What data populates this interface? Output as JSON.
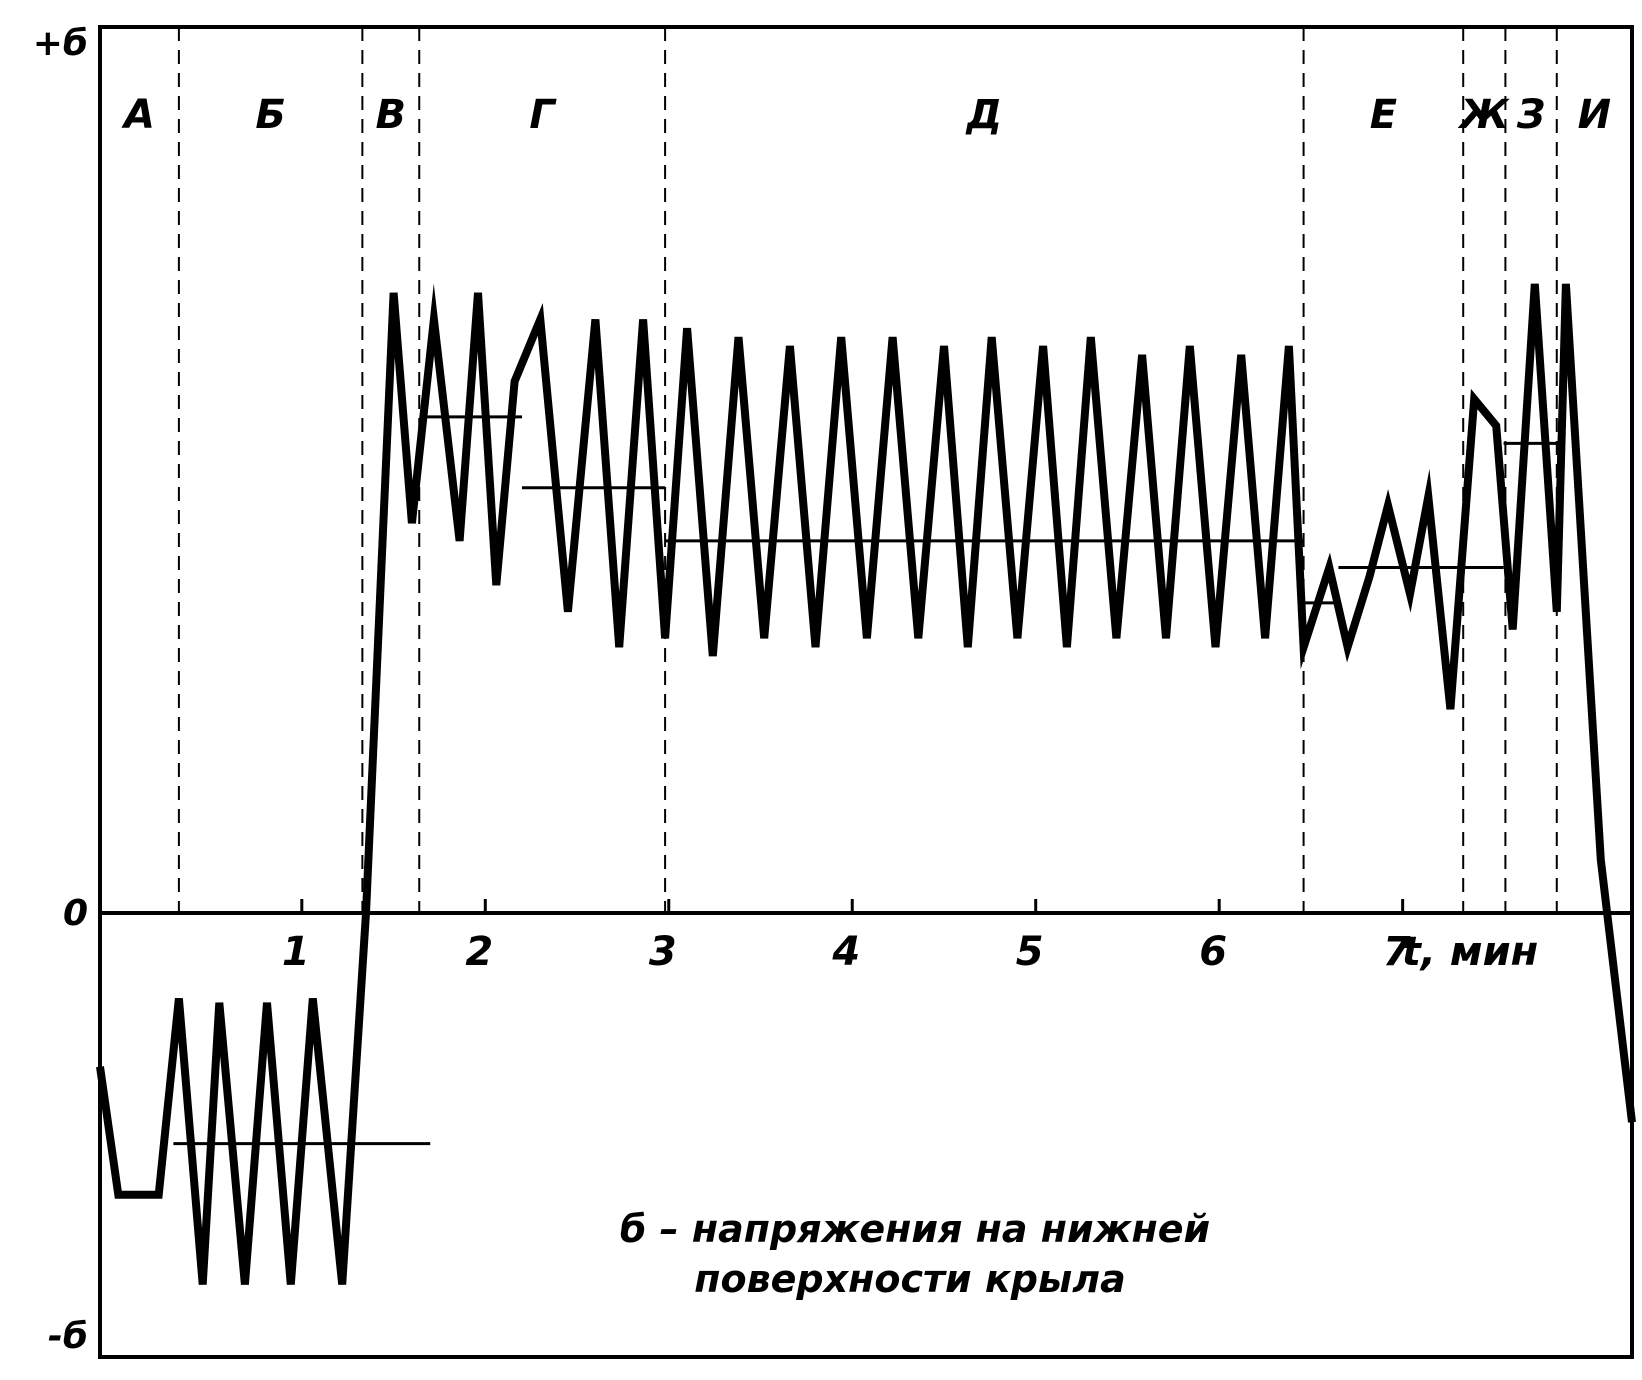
{
  "chart_data": {
    "type": "line",
    "title": "",
    "caption_line1": "б – напряжения на нижней",
    "caption_line2": "поверхности крыла",
    "xlabel": "t, мин",
    "ylabel": "",
    "y_top_label": "+б",
    "y_zero_label": "0",
    "y_bottom_label": "-б",
    "xlim": [
      -0.1,
      8.25
    ],
    "ylim": [
      -1,
      1
    ],
    "x_ticks": [
      1,
      2,
      3,
      4,
      5,
      6,
      7
    ],
    "x_tick_labels": [
      "1",
      "2",
      "3",
      "4",
      "5",
      "6",
      "7"
    ],
    "grid": false,
    "phases": [
      {
        "label": "А",
        "start": -0.1,
        "end": 0.33
      },
      {
        "label": "Б",
        "start": 0.33,
        "end": 1.33
      },
      {
        "label": "В",
        "start": 1.33,
        "end": 1.64
      },
      {
        "label": "Г",
        "start": 1.64,
        "end": 2.98
      },
      {
        "label": "Д",
        "start": 2.98,
        "end": 6.46
      },
      {
        "label": "Е",
        "start": 6.46,
        "end": 7.33
      },
      {
        "label": "Ж",
        "start": 7.33,
        "end": 7.56
      },
      {
        "label": "З",
        "start": 7.56,
        "end": 7.84
      },
      {
        "label": "И",
        "start": 7.84,
        "end": 8.25
      }
    ],
    "series": [
      {
        "kind": "stress",
        "x": [
          -0.1,
          0.0,
          0.22,
          0.33,
          0.46,
          0.55,
          0.69,
          0.81,
          0.94,
          1.06,
          1.22,
          1.35,
          1.5,
          1.6,
          1.72,
          1.86,
          1.96,
          2.06,
          2.16,
          2.3,
          2.45,
          2.6,
          2.73,
          2.86,
          2.98,
          3.1,
          3.24,
          3.38,
          3.52,
          3.66,
          3.8,
          3.94,
          4.08,
          4.22,
          4.36,
          4.5,
          4.63,
          4.76,
          4.9,
          5.04,
          5.17,
          5.3,
          5.44,
          5.58,
          5.71,
          5.84,
          5.98,
          6.12,
          6.25,
          6.38,
          6.46,
          6.6,
          6.7,
          6.82,
          6.92,
          7.04,
          7.14,
          7.26,
          7.39,
          7.51,
          7.6,
          7.72,
          7.84,
          7.89,
          8.08,
          8.25
        ],
        "y": [
          -0.36,
          -0.66,
          -0.66,
          -0.2,
          -0.87,
          -0.21,
          -0.87,
          -0.21,
          -0.87,
          -0.2,
          -0.87,
          0.0,
          0.7,
          0.44,
          0.67,
          0.42,
          0.7,
          0.37,
          0.6,
          0.67,
          0.34,
          0.67,
          0.3,
          0.67,
          0.31,
          0.66,
          0.29,
          0.65,
          0.31,
          0.64,
          0.3,
          0.65,
          0.31,
          0.65,
          0.31,
          0.64,
          0.3,
          0.65,
          0.31,
          0.64,
          0.3,
          0.65,
          0.31,
          0.63,
          0.31,
          0.64,
          0.3,
          0.63,
          0.31,
          0.64,
          0.3,
          0.39,
          0.3,
          0.38,
          0.46,
          0.36,
          0.47,
          0.23,
          0.58,
          0.55,
          0.32,
          0.71,
          0.34,
          0.71,
          0.06,
          -0.49
        ]
      },
      {
        "kind": "mean",
        "segments": [
          {
            "x": [
              0.3,
              1.7
            ],
            "y": -0.54
          },
          {
            "x": [
              1.65,
              2.2
            ],
            "y": 0.56
          },
          {
            "x": [
              2.2,
              2.98
            ],
            "y": 0.48
          },
          {
            "x": [
              2.98,
              6.46
            ],
            "y": 0.42
          },
          {
            "x": [
              6.46,
              6.65
            ],
            "y": 0.35
          },
          {
            "x": [
              6.65,
              7.55
            ],
            "y": 0.39
          },
          {
            "x": [
              7.55,
              7.84
            ],
            "y": 0.53
          }
        ]
      }
    ]
  }
}
